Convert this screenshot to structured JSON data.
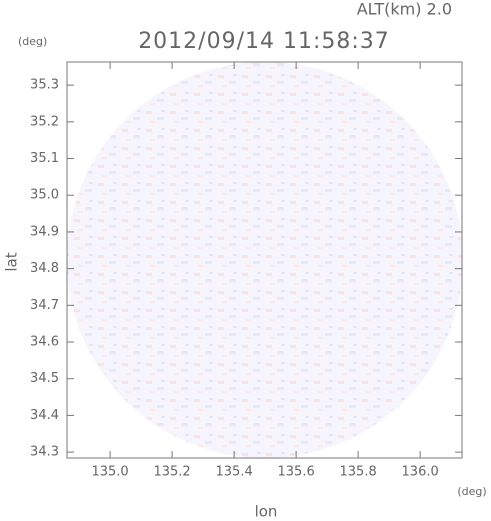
{
  "chart_data": {
    "type": "radar",
    "title": "2012/09/14 11:58:37",
    "subtitle": "ALT(km) 2.0",
    "y_unit": "(deg)",
    "x_unit": "(deg)",
    "xlabel": "lon",
    "ylabel": "lat",
    "xlim": [
      134.861,
      136.135
    ],
    "ylim": [
      34.284,
      35.363
    ],
    "xticks": [
      {
        "value": 135,
        "label": "135.0"
      },
      135.2,
      135.4,
      135.6,
      135.8,
      {
        "value": 136,
        "label": "136.0"
      }
    ],
    "yticks": [
      34.3,
      34.4,
      34.5,
      34.6,
      34.7,
      34.8,
      34.9,
      {
        "value": 35,
        "label": "35.0"
      },
      35.1,
      35.2,
      35.3
    ]
  }
}
